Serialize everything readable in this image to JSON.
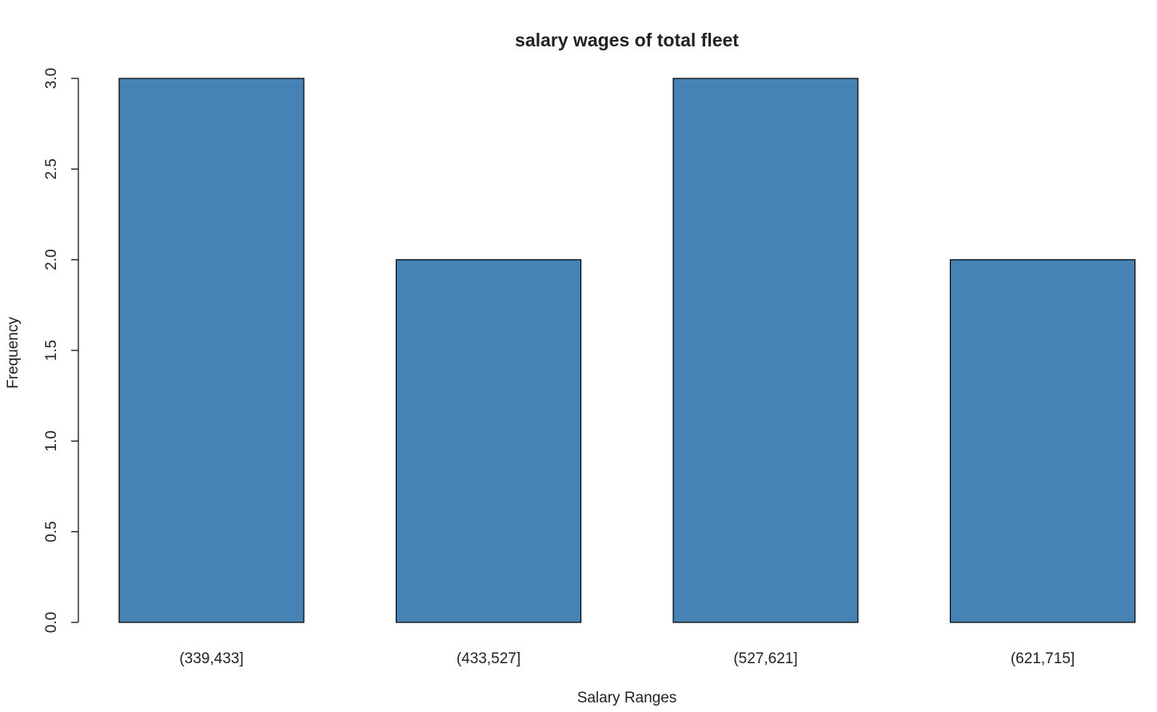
{
  "chart_data": {
    "type": "bar",
    "title": "salary wages of total fleet",
    "xlabel": "Salary Ranges",
    "ylabel": "Frequency",
    "categories": [
      "(339,433]",
      "(433,527]",
      "(527,621]",
      "(621,715]"
    ],
    "values": [
      3,
      2,
      3,
      2
    ],
    "ylim": [
      0,
      3
    ],
    "yticks": [
      0.0,
      0.5,
      1.0,
      1.5,
      2.0,
      2.5,
      3.0
    ],
    "ytick_labels": [
      "0.0",
      "0.5",
      "1.0",
      "1.5",
      "2.0",
      "2.5",
      "3.0"
    ],
    "bar_color": "#4682b4",
    "bar_border_color": "#000000",
    "grid": false,
    "legend": "none"
  }
}
